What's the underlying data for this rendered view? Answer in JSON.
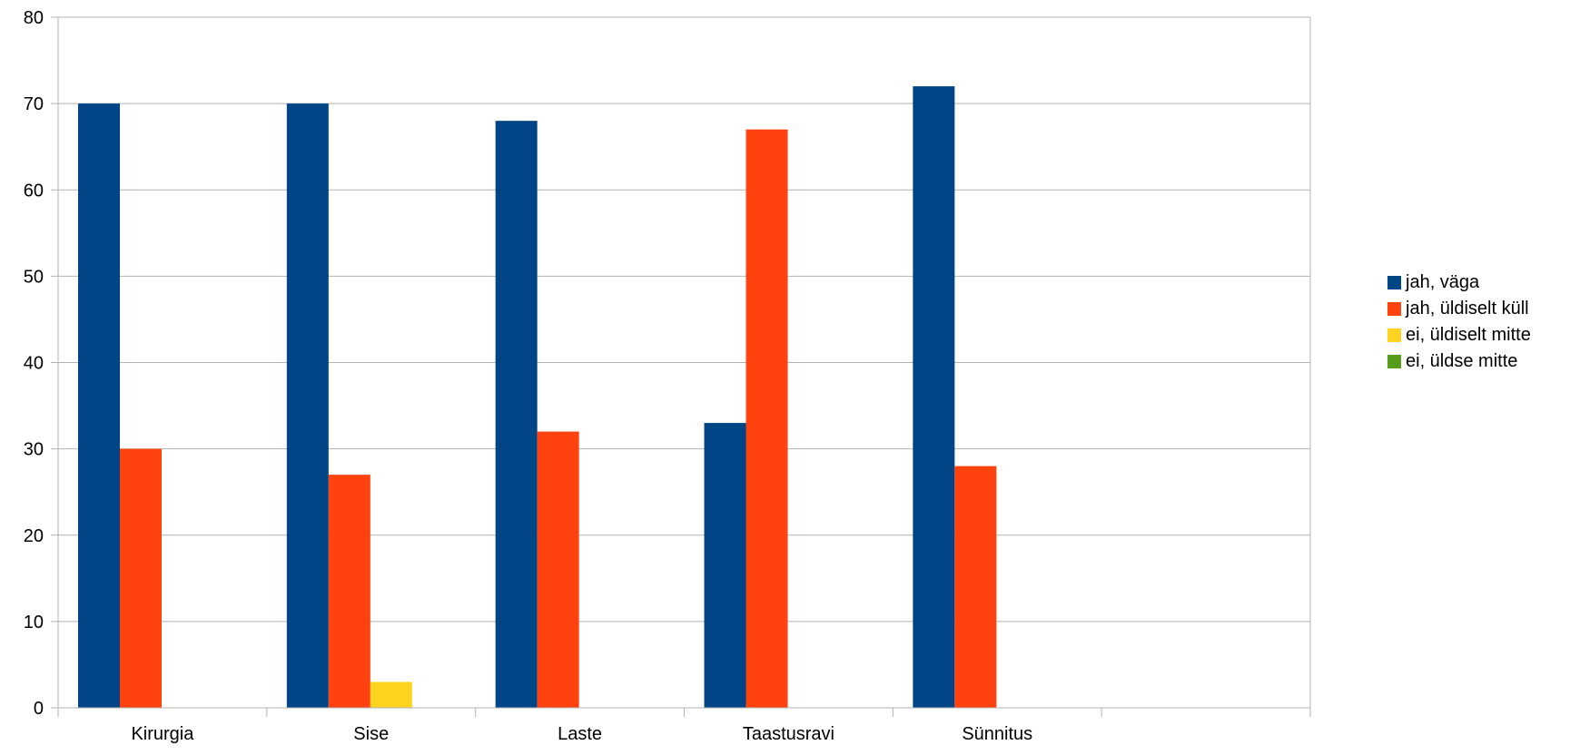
{
  "chart_data": {
    "type": "bar",
    "categories": [
      "Kirurgia",
      "Sise",
      "Laste",
      "Taastusravi",
      "Sünnitus",
      ""
    ],
    "series": [
      {
        "name": "jah, väga",
        "color": "#004586",
        "values": [
          70,
          70,
          68,
          33,
          72,
          null
        ]
      },
      {
        "name": "jah, üldiselt küll",
        "color": "#ff420e",
        "values": [
          30,
          27,
          32,
          67,
          28,
          null
        ]
      },
      {
        "name": "ei, üldiselt mitte",
        "color": "#ffd320",
        "values": [
          0,
          3,
          0,
          0,
          0,
          null
        ]
      },
      {
        "name": "ei, üldse mitte",
        "color": "#579d1c",
        "values": [
          0,
          0,
          0,
          0,
          0,
          null
        ]
      }
    ],
    "ylim": [
      0,
      80
    ],
    "yticks": [
      "0",
      "10",
      "20",
      "30",
      "40",
      "50",
      "60",
      "70",
      "80"
    ],
    "grid": true,
    "legend_position": "right"
  }
}
